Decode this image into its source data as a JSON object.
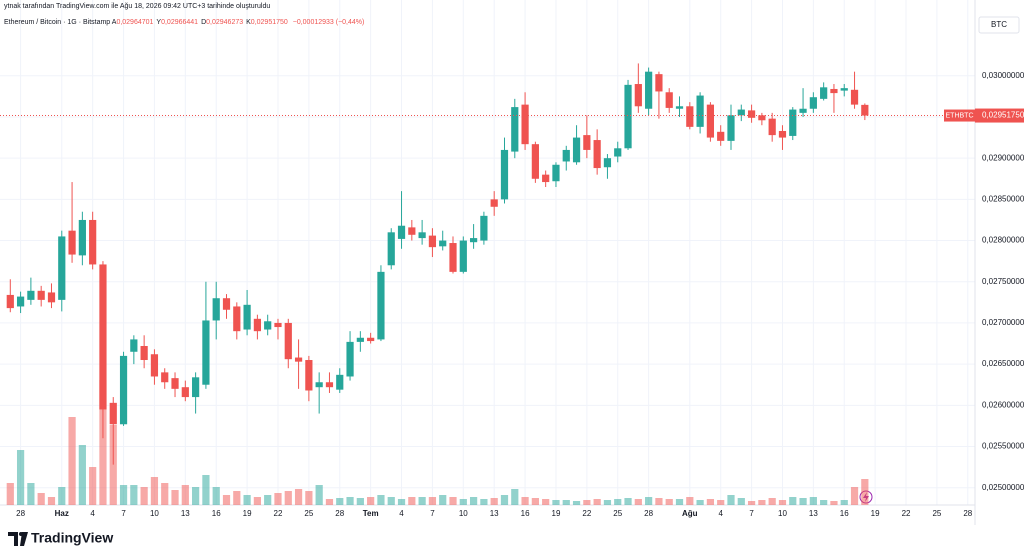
{
  "header": {
    "credit": "ytnak tarafından TradingView.com ile Ağu 18, 2026 09:42 UTC+3 tarihinde oluşturuldu",
    "symbol": "Ethereum / Bitcoin · 1G · Bitstamp",
    "ohlc": [
      {
        "key": "A",
        "value": "0,02964701"
      },
      {
        "key": "Y",
        "value": "0,02966441"
      },
      {
        "key": "D",
        "value": "0,02946273"
      },
      {
        "key": "K",
        "value": "0,02951750"
      }
    ],
    "change": "−0,00012933 (−0,44%)"
  },
  "currency": "BTC",
  "brand": "TradingView",
  "chart_data": {
    "type": "candlestick",
    "up_color": "#26a69a",
    "down_color": "#ef5350",
    "grid": true,
    "open": [
      0.02734,
      0.0272,
      0.02728,
      0.02739,
      0.02737,
      0.02728,
      0.02812,
      0.02782,
      0.02825,
      0.02771,
      0.02603,
      0.02577,
      0.02665,
      0.02672,
      0.02662,
      0.0264,
      0.02633,
      0.02622,
      0.0261,
      0.02625,
      0.02703,
      0.0273,
      0.0272,
      0.02692,
      0.02705,
      0.02692,
      0.027,
      0.027,
      0.02658,
      0.02655,
      0.02622,
      0.02628,
      0.02619,
      0.02635,
      0.02677,
      0.02682,
      0.0268,
      0.0277,
      0.02802,
      0.02816,
      0.02803,
      0.02806,
      0.02793,
      0.02797,
      0.02762,
      0.02798,
      0.028,
      0.0285,
      0.0285,
      0.02908,
      0.02965,
      0.02917,
      0.0288,
      0.02872,
      0.02896,
      0.02895,
      0.02928,
      0.02922,
      0.02889,
      0.02902,
      0.02912,
      0.0299,
      0.0296,
      0.03002,
      0.0298,
      0.0296,
      0.02963,
      0.02938,
      0.02965,
      0.02932,
      0.02921,
      0.02952,
      0.02958,
      0.02952,
      0.02948,
      0.02933,
      0.02927,
      0.02955,
      0.0296,
      0.02972,
      0.02984,
      0.02982,
      0.02983,
      0.02964701
    ],
    "high": [
      0.02753,
      0.02738,
      0.02755,
      0.02745,
      0.02748,
      0.02812,
      0.02871,
      0.02835,
      0.02835,
      0.02775,
      0.0261,
      0.02665,
      0.02685,
      0.02685,
      0.02668,
      0.02645,
      0.0264,
      0.0263,
      0.0264,
      0.0275,
      0.0275,
      0.02735,
      0.02725,
      0.0274,
      0.0271,
      0.0271,
      0.02705,
      0.02705,
      0.0268,
      0.0266,
      0.0264,
      0.0264,
      0.02645,
      0.0269,
      0.0269,
      0.02688,
      0.0277,
      0.02815,
      0.0286,
      0.02825,
      0.02825,
      0.02815,
      0.02812,
      0.02805,
      0.02805,
      0.0282,
      0.02835,
      0.0286,
      0.02925,
      0.02972,
      0.0298,
      0.0292,
      0.02885,
      0.02895,
      0.02915,
      0.0294,
      0.02952,
      0.02935,
      0.02905,
      0.0292,
      0.02995,
      0.03015,
      0.0301,
      0.03005,
      0.02985,
      0.02975,
      0.02968,
      0.0298,
      0.02968,
      0.0294,
      0.02965,
      0.02965,
      0.02965,
      0.02955,
      0.02955,
      0.0294,
      0.02962,
      0.02985,
      0.0298,
      0.02992,
      0.0299,
      0.0299,
      0.03005,
      0.02966441
    ],
    "low": [
      0.02713,
      0.02712,
      0.02722,
      0.0272,
      0.02718,
      0.02714,
      0.02773,
      0.0277,
      0.02765,
      0.0256,
      0.02528,
      0.02575,
      0.0265,
      0.02645,
      0.02625,
      0.0262,
      0.0261,
      0.02605,
      0.0259,
      0.0262,
      0.0268,
      0.02705,
      0.0268,
      0.02685,
      0.0268,
      0.02685,
      0.0268,
      0.02645,
      0.0262,
      0.02605,
      0.0259,
      0.02615,
      0.02615,
      0.0263,
      0.02665,
      0.02675,
      0.02678,
      0.02765,
      0.0279,
      0.028,
      0.02795,
      0.0278,
      0.02788,
      0.0276,
      0.0276,
      0.0279,
      0.02795,
      0.0283,
      0.02845,
      0.029,
      0.0291,
      0.0287,
      0.02865,
      0.02865,
      0.02885,
      0.02892,
      0.029,
      0.0288,
      0.02875,
      0.02895,
      0.0291,
      0.02955,
      0.02952,
      0.02948,
      0.02955,
      0.0295,
      0.02935,
      0.0293,
      0.0292,
      0.02915,
      0.0291,
      0.02945,
      0.02943,
      0.0294,
      0.0292,
      0.0291,
      0.02922,
      0.0295,
      0.02955,
      0.0297,
      0.02955,
      0.02975,
      0.0296,
      0.02946273
    ],
    "close": [
      0.02718,
      0.02732,
      0.02739,
      0.02728,
      0.02725,
      0.02805,
      0.02783,
      0.02825,
      0.02771,
      0.02595,
      0.02577,
      0.0266,
      0.0268,
      0.02655,
      0.02635,
      0.02628,
      0.0262,
      0.0261,
      0.02634,
      0.02703,
      0.0273,
      0.02716,
      0.0269,
      0.02722,
      0.0269,
      0.02702,
      0.02695,
      0.02656,
      0.02653,
      0.02618,
      0.02628,
      0.02622,
      0.02637,
      0.02677,
      0.02682,
      0.02678,
      0.02762,
      0.0281,
      0.02818,
      0.02807,
      0.0281,
      0.02792,
      0.028,
      0.02762,
      0.028,
      0.02803,
      0.0283,
      0.02841,
      0.0291,
      0.02962,
      0.02917,
      0.02875,
      0.02871,
      0.02892,
      0.0291,
      0.02925,
      0.0291,
      0.02888,
      0.029,
      0.02912,
      0.02989,
      0.02963,
      0.03005,
      0.02981,
      0.02961,
      0.02963,
      0.02938,
      0.02976,
      0.02925,
      0.02921,
      0.02952,
      0.02959,
      0.02949,
      0.02946,
      0.02928,
      0.02925,
      0.02959,
      0.0296,
      0.02974,
      0.02986,
      0.02979,
      0.02985,
      0.02965,
      0.0295175
    ],
    "volume": [
      22,
      55,
      22,
      12,
      8,
      18,
      88,
      60,
      38,
      125,
      80,
      20,
      20,
      18,
      28,
      22,
      15,
      20,
      18,
      30,
      18,
      10,
      14,
      10,
      8,
      10,
      12,
      14,
      16,
      14,
      20,
      6,
      7,
      8,
      7,
      8,
      10,
      8,
      6,
      8,
      8,
      8,
      10,
      8,
      6,
      8,
      6,
      7,
      10,
      16,
      8,
      7,
      6,
      5,
      5,
      4,
      5,
      6,
      5,
      6,
      7,
      6,
      8,
      7,
      6,
      6,
      8,
      5,
      6,
      5,
      10,
      7,
      4,
      5,
      7,
      5,
      8,
      7,
      8,
      5,
      4,
      5,
      18,
      26
    ],
    "vlim": [
      0,
      140
    ],
    "xlim": [
      -1,
      93.7
    ],
    "xticks": [
      {
        "value": 1,
        "label": "28"
      },
      {
        "value": 5,
        "label": "Haz",
        "major": true
      },
      {
        "value": 8,
        "label": "4"
      },
      {
        "value": 11,
        "label": "7"
      },
      {
        "value": 14,
        "label": "10"
      },
      {
        "value": 17,
        "label": "13"
      },
      {
        "value": 20,
        "label": "16"
      },
      {
        "value": 23,
        "label": "19"
      },
      {
        "value": 26,
        "label": "22"
      },
      {
        "value": 29,
        "label": "25"
      },
      {
        "value": 32,
        "label": "28"
      },
      {
        "value": 35,
        "label": "Tem",
        "major": true
      },
      {
        "value": 38,
        "label": "4"
      },
      {
        "value": 41,
        "label": "7"
      },
      {
        "value": 44,
        "label": "10"
      },
      {
        "value": 47,
        "label": "13"
      },
      {
        "value": 50,
        "label": "16"
      },
      {
        "value": 53,
        "label": "19"
      },
      {
        "value": 56,
        "label": "22"
      },
      {
        "value": 59,
        "label": "25"
      },
      {
        "value": 62,
        "label": "28"
      },
      {
        "value": 66,
        "label": "Ağu",
        "major": true
      },
      {
        "value": 69,
        "label": "4"
      },
      {
        "value": 72,
        "label": "7"
      },
      {
        "value": 75,
        "label": "10"
      },
      {
        "value": 78,
        "label": "13"
      },
      {
        "value": 81,
        "label": "16"
      },
      {
        "value": 84,
        "label": "19"
      },
      {
        "value": 87,
        "label": "22"
      },
      {
        "value": 90,
        "label": "25"
      },
      {
        "value": 93,
        "label": "28"
      }
    ],
    "ylim": [
      0.02479,
      0.03092
    ],
    "yticks": [
      {
        "value": 0.025,
        "label": "0,02500000"
      },
      {
        "value": 0.0255,
        "label": "0,02550000"
      },
      {
        "value": 0.026,
        "label": "0,02600000"
      },
      {
        "value": 0.0265,
        "label": "0,02650000"
      },
      {
        "value": 0.027,
        "label": "0,02700000"
      },
      {
        "value": 0.0275,
        "label": "0,02750000"
      },
      {
        "value": 0.028,
        "label": "0,02800000"
      },
      {
        "value": 0.0285,
        "label": "0,02850000"
      },
      {
        "value": 0.029,
        "label": "0,02900000"
      },
      {
        "value": 0.0295,
        "label": "0,02950000"
      },
      {
        "value": 0.03,
        "label": "0,03000000"
      }
    ],
    "last_price": {
      "value": 0.0295175,
      "label": "0,02951750",
      "symbol": "ETHBTC"
    }
  }
}
